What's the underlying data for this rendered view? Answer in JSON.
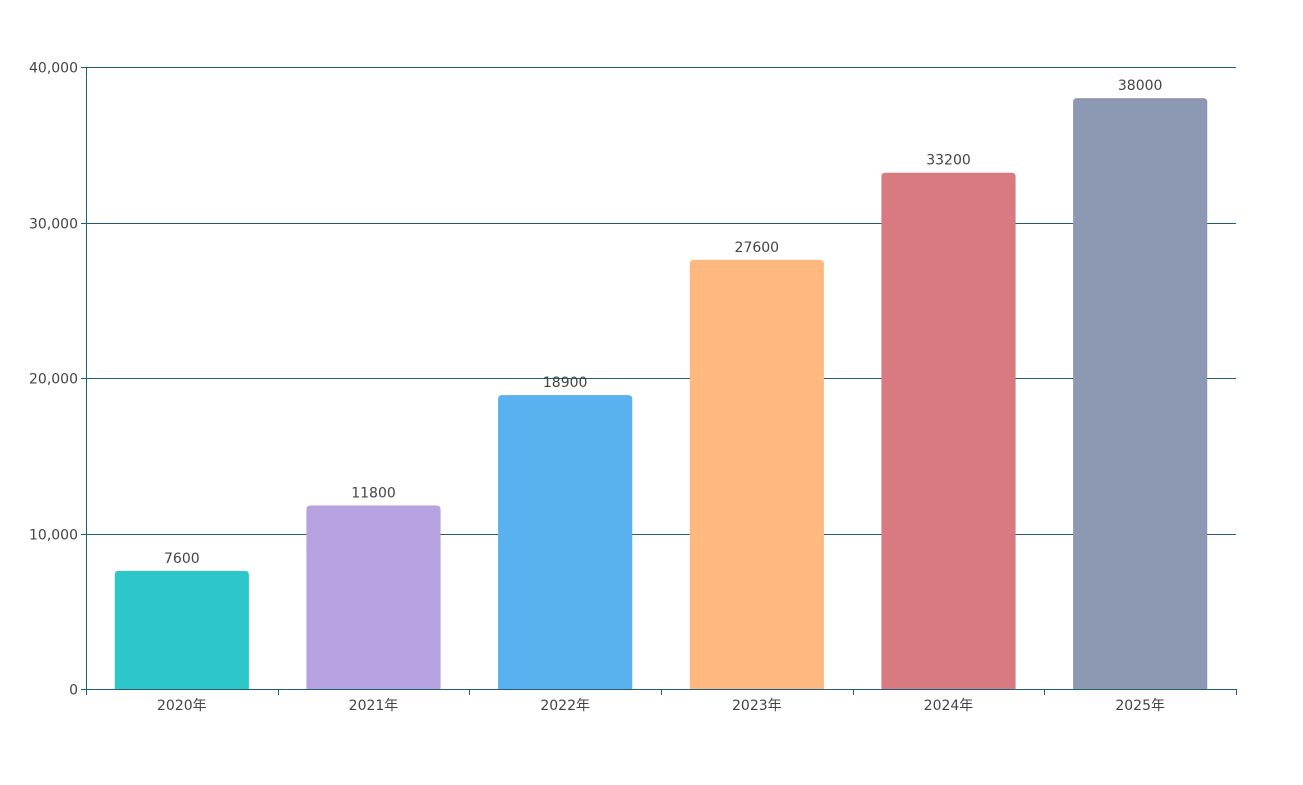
{
  "chart_data": {
    "type": "bar",
    "categories": [
      "2020年",
      "2021年",
      "2022年",
      "2023年",
      "2024年",
      "2025年"
    ],
    "values": [
      7600,
      11800,
      18900,
      27600,
      33200,
      38000
    ],
    "data_labels": [
      "7600",
      "11800",
      "18900",
      "27600",
      "33200",
      "38000"
    ],
    "colors": [
      "#2EC7C9",
      "#B6A2DE",
      "#5AB1EF",
      "#FFB980",
      "#D87A80",
      "#8D98B3"
    ],
    "title": "",
    "xlabel": "",
    "ylabel": "",
    "ylim": [
      0,
      40000
    ],
    "yticks": [
      0,
      10000,
      20000,
      30000,
      40000
    ],
    "ytick_labels": [
      "0",
      "10,000",
      "20,000",
      "30,000",
      "40,000"
    ],
    "grid": true,
    "axis_color": "#1F5F7A"
  }
}
